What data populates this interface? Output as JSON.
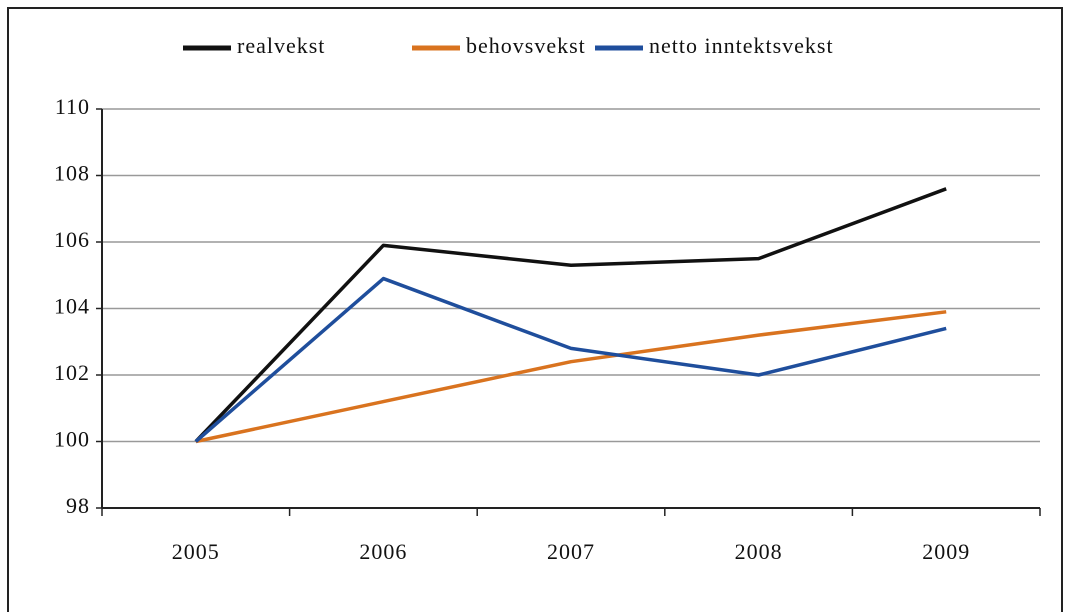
{
  "chart_data": {
    "type": "line",
    "categories": [
      "2005",
      "2006",
      "2007",
      "2008",
      "2009"
    ],
    "series": [
      {
        "name": "realvekst",
        "color": "#111111",
        "values": [
          100,
          105.9,
          105.3,
          105.5,
          107.6
        ]
      },
      {
        "name": "behovsvekst",
        "color": "#d9731f",
        "values": [
          100,
          101.2,
          102.4,
          103.2,
          103.9
        ]
      },
      {
        "name": "netto inntektsvekst",
        "color": "#1f4e9c",
        "values": [
          100,
          104.9,
          102.8,
          102.0,
          103.4
        ]
      }
    ],
    "ylim": [
      98,
      110
    ],
    "yticks": [
      98,
      100,
      102,
      104,
      106,
      108,
      110
    ],
    "grid": true,
    "legend": "top"
  }
}
